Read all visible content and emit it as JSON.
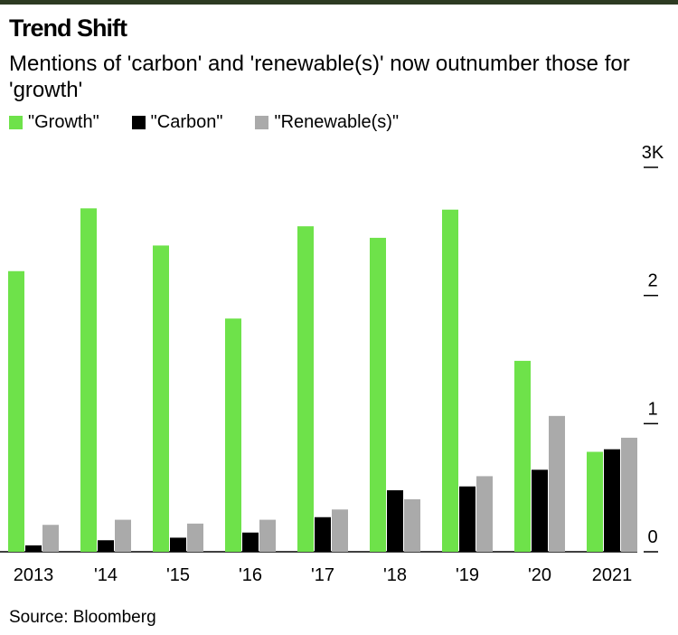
{
  "chart_data": {
    "type": "bar",
    "title": "Trend Shift",
    "subtitle": "Mentions of 'carbon' and 'renewable(s)' now outnumber those for 'growth'",
    "categories": [
      "2013",
      "'14",
      "'15",
      "'16",
      "'17",
      "'18",
      "'19",
      "'20",
      "2021"
    ],
    "series": [
      {
        "name": "\"Growth\"",
        "color": "#6ee24a",
        "values": [
          2.19,
          2.68,
          2.39,
          1.82,
          2.54,
          2.45,
          2.67,
          1.49,
          0.78
        ]
      },
      {
        "name": "\"Carbon\"",
        "color": "#000000",
        "values": [
          0.05,
          0.09,
          0.11,
          0.15,
          0.27,
          0.48,
          0.51,
          0.64,
          0.8
        ]
      },
      {
        "name": "\"Renewable(s)\"",
        "color": "#aaaaaa",
        "values": [
          0.21,
          0.25,
          0.22,
          0.25,
          0.33,
          0.41,
          0.59,
          1.06,
          0.89
        ]
      }
    ],
    "ylim": [
      0,
      3
    ],
    "yticks": [
      0,
      1,
      2,
      {
        "value": 3,
        "label": "3K"
      }
    ],
    "source": "Source: Bloomberg"
  }
}
